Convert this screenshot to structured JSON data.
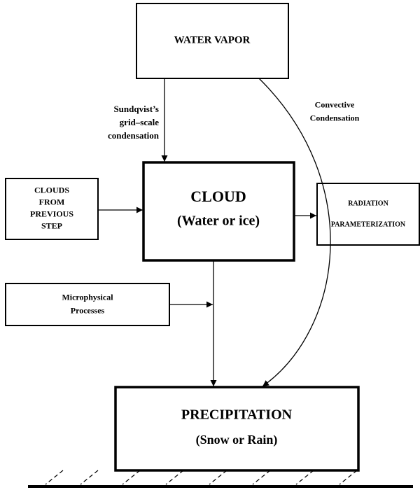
{
  "nodes": [
    {
      "lines": [
        "WATER VAPOR"
      ]
    },
    {
      "lines": [
        "CLOUD",
        "(Water or ice)"
      ]
    },
    {
      "lines": [
        "CLOUDS",
        "FROM",
        "PREVIOUS",
        "STEP"
      ]
    },
    {
      "lines": [
        "RADIATION",
        "PARAMETERIZATION"
      ]
    },
    {
      "lines": [
        "Microphysical",
        "Processes"
      ]
    },
    {
      "lines": [
        "PRECIPITATION",
        "(Snow or Rain)"
      ]
    }
  ],
  "edge_labels": [
    {
      "lines": [
        "Sundqvist’s",
        "grid–scale",
        "condensation"
      ]
    },
    {
      "lines": [
        "Convective",
        "Condensation"
      ]
    }
  ]
}
